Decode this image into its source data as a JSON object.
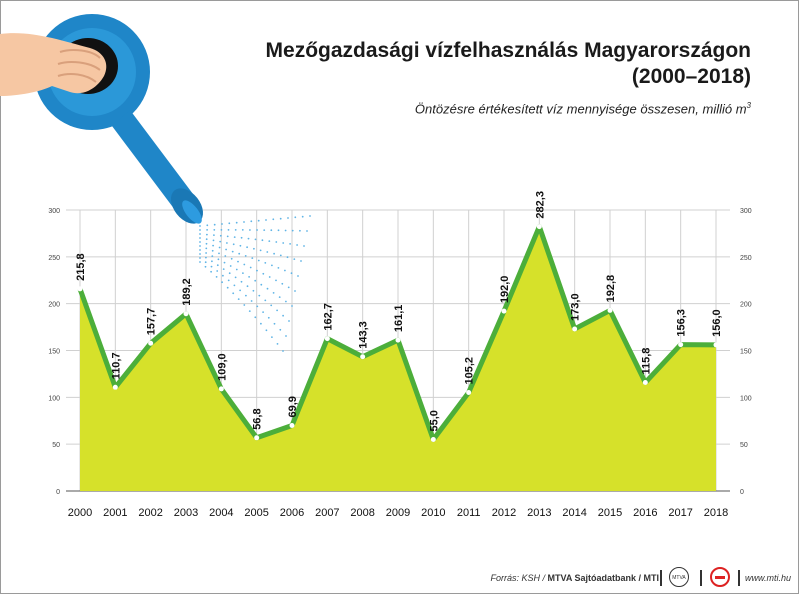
{
  "header": {
    "title_line1": "Mezőgazdasági vízfelhasználás Magyarországon",
    "title_line2": "(2000–2018)",
    "subtitle": "Öntözésre értékesített víz mennyisége összesen, millió m",
    "subtitle_sup": "3"
  },
  "footer": {
    "source_prefix": "Forrás: KSH / ",
    "source_bold": "MTVA Sajtóadatbank / MTI",
    "logo_text": "MTVA",
    "site": "www.mti.hu"
  },
  "colors": {
    "area_fill": "#d6e12a",
    "line": "#4cae3a",
    "point": "#ffffff",
    "grid": "#d0d0d0",
    "water_can": "#1f86c8"
  },
  "icons": [
    "watering-can-icon",
    "hand-icon",
    "water-spray-icon"
  ],
  "chart_data": {
    "type": "area",
    "title": "Mezőgazdasági vízfelhasználás Magyarországon (2000–2018)",
    "subtitle": "Öntözésre értékesített víz mennyisége összesen, millió m3",
    "xlabel": "",
    "ylabel": "",
    "ylim": [
      0,
      300
    ],
    "yticks": [
      0,
      50,
      100,
      150,
      200,
      250,
      300
    ],
    "grid": true,
    "legend": "none",
    "x": [
      "2000",
      "2001",
      "2002",
      "2003",
      "2004",
      "2005",
      "2006",
      "2007",
      "2008",
      "2009",
      "2010",
      "2011",
      "2012",
      "2013",
      "2014",
      "2015",
      "2016",
      "2017",
      "2018"
    ],
    "values": [
      215.8,
      110.7,
      157.7,
      189.2,
      109.0,
      56.8,
      69.9,
      162.7,
      143.3,
      161.1,
      55.0,
      105.2,
      192.0,
      282.3,
      173.0,
      192.8,
      115.8,
      156.3,
      156.0
    ],
    "value_labels": [
      "215,8",
      "110,7",
      "157,7",
      "189,2",
      "109,0",
      "56,8",
      "69,9",
      "162,7",
      "143,3",
      "161,1",
      "55,0",
      "105,2",
      "192,0",
      "282,3",
      "173,0",
      "192,8",
      "115,8",
      "156,3",
      "156,0"
    ]
  }
}
